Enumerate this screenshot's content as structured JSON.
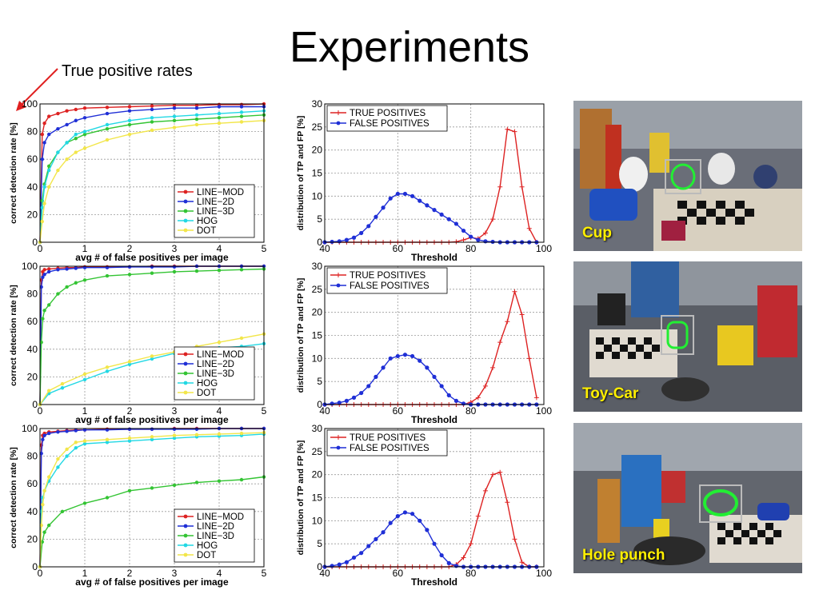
{
  "slide": {
    "title": "Experiments",
    "annotation": "True positive rates"
  },
  "colors": {
    "red": "#dd2222",
    "blue": "#1f2fd6",
    "green": "#33c433",
    "cyan": "#22d8e4",
    "yellow": "#f2e64a",
    "photo_label": "#ffef00",
    "arrow": "#e02020"
  },
  "photos": [
    {
      "label": "Cup"
    },
    {
      "label": "Toy-Car"
    },
    {
      "label": "Hole punch"
    }
  ],
  "chart_data": [
    {
      "type": "line",
      "xlabel": "avg # of false positives per image",
      "ylabel": "correct detection rate [%]",
      "xlim": [
        0,
        5
      ],
      "ylim": [
        0,
        100
      ],
      "xticks": [
        0,
        1,
        2,
        3,
        4,
        5
      ],
      "yticks": [
        0,
        20,
        40,
        60,
        80,
        100
      ],
      "grid": true,
      "legend": "bottom-right",
      "series": [
        {
          "name": "LINE−MOD",
          "color": "#dd2222",
          "x": [
            0,
            0.05,
            0.1,
            0.2,
            0.4,
            0.6,
            0.8,
            1,
            1.5,
            2,
            2.5,
            3,
            3.5,
            4,
            4.5,
            5
          ],
          "y": [
            0,
            78,
            86,
            91,
            93,
            95,
            96,
            97,
            97.5,
            98,
            98.5,
            99,
            99,
            99.5,
            99.5,
            100
          ]
        },
        {
          "name": "LINE−2D",
          "color": "#1f2fd6",
          "x": [
            0,
            0.05,
            0.1,
            0.2,
            0.4,
            0.6,
            0.8,
            1,
            1.5,
            2,
            2.5,
            3,
            3.5,
            4,
            4.5,
            5
          ],
          "y": [
            0,
            60,
            72,
            78,
            82,
            85,
            88,
            90,
            93,
            95,
            96,
            97,
            97,
            98,
            98,
            98
          ]
        },
        {
          "name": "LINE−3D",
          "color": "#33c433",
          "x": [
            0,
            0.05,
            0.1,
            0.2,
            0.4,
            0.6,
            0.8,
            1,
            1.5,
            2,
            2.5,
            3,
            3.5,
            4,
            4.5,
            5
          ],
          "y": [
            0,
            30,
            42,
            55,
            65,
            72,
            75,
            78,
            82,
            85,
            87,
            88,
            89,
            90,
            91,
            92
          ]
        },
        {
          "name": "HOG",
          "color": "#22d8e4",
          "x": [
            0,
            0.05,
            0.1,
            0.2,
            0.4,
            0.6,
            0.8,
            1,
            1.5,
            2,
            2.5,
            3,
            3.5,
            4,
            4.5,
            5
          ],
          "y": [
            0,
            25,
            40,
            52,
            65,
            72,
            78,
            80,
            85,
            88,
            90,
            91,
            92,
            93,
            94,
            95
          ]
        },
        {
          "name": "DOT",
          "color": "#f2e64a",
          "x": [
            0,
            0.05,
            0.1,
            0.2,
            0.4,
            0.6,
            0.8,
            1,
            1.5,
            2,
            2.5,
            3,
            3.5,
            4,
            4.5,
            5
          ],
          "y": [
            0,
            15,
            28,
            40,
            52,
            60,
            65,
            68,
            74,
            78,
            81,
            83,
            85,
            86,
            87,
            88
          ]
        }
      ]
    },
    {
      "type": "line",
      "xlabel": "Threshold",
      "ylabel": "distribution of TP and FP [%]",
      "xlim": [
        40,
        100
      ],
      "ylim": [
        0,
        30
      ],
      "xticks": [
        40,
        60,
        80,
        100
      ],
      "yticks": [
        0,
        5,
        10,
        15,
        20,
        25,
        30
      ],
      "grid": true,
      "legend": "top-left",
      "series": [
        {
          "name": "TRUE POSITIVES",
          "color": "#dd2222",
          "marker": "plus",
          "x": [
            40,
            42,
            44,
            46,
            48,
            50,
            52,
            54,
            56,
            58,
            60,
            62,
            64,
            66,
            68,
            70,
            72,
            74,
            76,
            78,
            80,
            82,
            84,
            86,
            88,
            90,
            92,
            94,
            96,
            98
          ],
          "y": [
            0,
            0,
            0,
            0,
            0,
            0,
            0,
            0,
            0,
            0,
            0,
            0,
            0,
            0,
            0,
            0,
            0,
            0,
            0.1,
            0.5,
            1,
            0.8,
            2,
            5,
            12,
            24.5,
            24,
            12,
            3,
            0
          ]
        },
        {
          "name": "FALSE POSITIVES",
          "color": "#1f2fd6",
          "marker": "dot",
          "x": [
            40,
            42,
            44,
            46,
            48,
            50,
            52,
            54,
            56,
            58,
            60,
            62,
            64,
            66,
            68,
            70,
            72,
            74,
            76,
            78,
            80,
            82,
            84,
            86,
            88,
            90,
            92,
            94,
            96,
            98
          ],
          "y": [
            0,
            0.1,
            0.2,
            0.5,
            1,
            2,
            3.5,
            5.5,
            7.5,
            9.5,
            10.5,
            10.5,
            10,
            9,
            8,
            7,
            6,
            5,
            4,
            2.5,
            1.2,
            0.5,
            0.2,
            0.1,
            0,
            0,
            0,
            0,
            0,
            0
          ]
        }
      ]
    },
    {
      "type": "line",
      "xlabel": "avg # of false positives per image",
      "ylabel": "correct detection rate [%]",
      "xlim": [
        0,
        5
      ],
      "ylim": [
        0,
        100
      ],
      "xticks": [
        0,
        1,
        2,
        3,
        4,
        5
      ],
      "yticks": [
        0,
        20,
        40,
        60,
        80,
        100
      ],
      "grid": true,
      "legend": "bottom-right",
      "series": [
        {
          "name": "LINE−MOD",
          "color": "#dd2222",
          "x": [
            0,
            0.03,
            0.06,
            0.1,
            0.2,
            0.4,
            0.6,
            0.8,
            1,
            1.5,
            2,
            2.5,
            3,
            3.5,
            4,
            4.5,
            5
          ],
          "y": [
            0,
            90,
            96,
            97.5,
            98,
            98.5,
            99,
            99,
            99.5,
            99.5,
            99.5,
            100,
            100,
            100,
            100,
            100,
            100
          ]
        },
        {
          "name": "LINE−2D",
          "color": "#1f2fd6",
          "x": [
            0,
            0.03,
            0.06,
            0.1,
            0.2,
            0.4,
            0.6,
            0.8,
            1,
            1.5,
            2,
            2.5,
            3,
            3.5,
            4,
            4.5,
            5
          ],
          "y": [
            0,
            85,
            92,
            94,
            96,
            97.5,
            98,
            98.5,
            99,
            99,
            99.5,
            99.5,
            99.5,
            100,
            100,
            100,
            100
          ]
        },
        {
          "name": "LINE−3D",
          "color": "#33c433",
          "x": [
            0,
            0.03,
            0.06,
            0.1,
            0.2,
            0.4,
            0.6,
            0.8,
            1,
            1.5,
            2,
            2.5,
            3,
            3.5,
            4,
            4.5,
            5
          ],
          "y": [
            0,
            45,
            62,
            68,
            72,
            80,
            85,
            88,
            90,
            93,
            94,
            95,
            96,
            96.5,
            97,
            97.5,
            98
          ]
        },
        {
          "name": "HOG",
          "color": "#22d8e4",
          "x": [
            0,
            0.2,
            0.5,
            1,
            1.5,
            2,
            2.5,
            3,
            3.5,
            4,
            4.5,
            5
          ],
          "y": [
            0,
            8,
            12,
            18,
            24,
            29,
            33,
            37,
            39,
            41,
            42,
            44
          ]
        },
        {
          "name": "DOT",
          "color": "#f2e64a",
          "x": [
            0,
            0.2,
            0.5,
            1,
            1.5,
            2,
            2.5,
            3,
            3.5,
            4,
            4.5,
            5
          ],
          "y": [
            0,
            10,
            15,
            22,
            27,
            31,
            35,
            38,
            42,
            45,
            48,
            51
          ]
        }
      ]
    },
    {
      "type": "line",
      "xlabel": "Threshold",
      "ylabel": "distribution of TP and FP [%]",
      "xlim": [
        40,
        100
      ],
      "ylim": [
        0,
        30
      ],
      "xticks": [
        40,
        60,
        80,
        100
      ],
      "yticks": [
        0,
        5,
        10,
        15,
        20,
        25,
        30
      ],
      "grid": true,
      "legend": "top-left",
      "series": [
        {
          "name": "TRUE POSITIVES",
          "color": "#dd2222",
          "marker": "plus",
          "x": [
            40,
            42,
            44,
            46,
            48,
            50,
            52,
            54,
            56,
            58,
            60,
            62,
            64,
            66,
            68,
            70,
            72,
            74,
            76,
            78,
            80,
            82,
            84,
            86,
            88,
            90,
            92,
            94,
            96,
            98
          ],
          "y": [
            0,
            0,
            0,
            0,
            0,
            0,
            0,
            0,
            0,
            0,
            0,
            0,
            0,
            0,
            0,
            0,
            0,
            0,
            0,
            0,
            0.5,
            1.5,
            4,
            8,
            13.5,
            18,
            24.5,
            19.5,
            10,
            1.5
          ]
        },
        {
          "name": "FALSE POSITIVES",
          "color": "#1f2fd6",
          "marker": "dot",
          "x": [
            40,
            42,
            44,
            46,
            48,
            50,
            52,
            54,
            56,
            58,
            60,
            62,
            64,
            66,
            68,
            70,
            72,
            74,
            76,
            78,
            80,
            82,
            84,
            86,
            88,
            90,
            92,
            94,
            96,
            98
          ],
          "y": [
            0,
            0.2,
            0.4,
            0.8,
            1.5,
            2.5,
            4,
            6,
            8,
            10,
            10.5,
            10.8,
            10.5,
            9.5,
            8,
            6,
            4,
            2,
            0.8,
            0.2,
            0,
            0,
            0,
            0,
            0,
            0,
            0,
            0,
            0,
            0
          ]
        }
      ]
    },
    {
      "type": "line",
      "xlabel": "avg # of false positives per image",
      "ylabel": "correct detection rate [%]",
      "xlim": [
        0,
        5
      ],
      "ylim": [
        0,
        100
      ],
      "xticks": [
        0,
        1,
        2,
        3,
        4,
        5
      ],
      "yticks": [
        0,
        20,
        40,
        60,
        80,
        100
      ],
      "grid": true,
      "legend": "bottom-right",
      "series": [
        {
          "name": "LINE−MOD",
          "color": "#dd2222",
          "x": [
            0,
            0.03,
            0.06,
            0.1,
            0.2,
            0.4,
            0.6,
            0.8,
            1,
            1.5,
            2,
            2.5,
            3,
            3.5,
            4,
            4.5,
            5
          ],
          "y": [
            0,
            88,
            95,
            96.5,
            97.5,
            98,
            98.5,
            99,
            99,
            99.5,
            99.5,
            99.5,
            100,
            100,
            100,
            100,
            100
          ]
        },
        {
          "name": "LINE−2D",
          "color": "#1f2fd6",
          "x": [
            0,
            0.03,
            0.06,
            0.1,
            0.2,
            0.4,
            0.6,
            0.8,
            1,
            1.5,
            2,
            2.5,
            3,
            3.5,
            4,
            4.5,
            5
          ],
          "y": [
            0,
            82,
            92,
            95,
            96.5,
            97.5,
            98,
            98.5,
            99,
            99,
            99.5,
            99.5,
            99.5,
            99.5,
            100,
            100,
            100
          ]
        },
        {
          "name": "LINE−3D",
          "color": "#33c433",
          "x": [
            0,
            0.05,
            0.1,
            0.2,
            0.5,
            1,
            1.5,
            2,
            2.5,
            3,
            3.5,
            4,
            4.5,
            5
          ],
          "y": [
            0,
            18,
            25,
            30,
            40,
            46,
            50,
            55,
            57,
            59,
            61,
            62,
            63,
            65
          ]
        },
        {
          "name": "HOG",
          "color": "#22d8e4",
          "x": [
            0,
            0.03,
            0.06,
            0.1,
            0.2,
            0.4,
            0.6,
            0.8,
            1,
            1.5,
            2,
            2.5,
            3,
            3.5,
            4,
            4.5,
            5
          ],
          "y": [
            0,
            40,
            50,
            55,
            62,
            72,
            80,
            86,
            89,
            90,
            91,
            92,
            93,
            94,
            94.5,
            95,
            96
          ]
        },
        {
          "name": "DOT",
          "color": "#f2e64a",
          "x": [
            0,
            0.03,
            0.06,
            0.1,
            0.2,
            0.4,
            0.6,
            0.8,
            1,
            1.5,
            2,
            2.5,
            3,
            3.5,
            4,
            4.5,
            5
          ],
          "y": [
            0,
            30,
            45,
            55,
            65,
            78,
            85,
            90,
            91,
            92,
            93,
            94,
            95,
            95.5,
            96,
            96.5,
            97
          ]
        }
      ]
    },
    {
      "type": "line",
      "xlabel": "Threshold",
      "ylabel": "distribution of TP and FP [%]",
      "xlim": [
        40,
        100
      ],
      "ylim": [
        0,
        30
      ],
      "xticks": [
        40,
        60,
        80,
        100
      ],
      "yticks": [
        0,
        5,
        10,
        15,
        20,
        25,
        30
      ],
      "grid": true,
      "legend": "top-left",
      "series": [
        {
          "name": "TRUE POSITIVES",
          "color": "#dd2222",
          "marker": "plus",
          "x": [
            40,
            42,
            44,
            46,
            48,
            50,
            52,
            54,
            56,
            58,
            60,
            62,
            64,
            66,
            68,
            70,
            72,
            74,
            76,
            78,
            80,
            82,
            84,
            86,
            88,
            90,
            92,
            94,
            96,
            98
          ],
          "y": [
            0,
            0,
            0,
            0,
            0,
            0,
            0,
            0,
            0,
            0,
            0,
            0,
            0,
            0,
            0,
            0,
            0,
            0,
            0.5,
            2,
            5,
            11,
            16.5,
            20,
            20.5,
            14,
            6,
            1,
            0,
            0
          ]
        },
        {
          "name": "FALSE POSITIVES",
          "color": "#1f2fd6",
          "marker": "dot",
          "x": [
            40,
            42,
            44,
            46,
            48,
            50,
            52,
            54,
            56,
            58,
            60,
            62,
            64,
            66,
            68,
            70,
            72,
            74,
            76,
            78,
            80,
            82,
            84,
            86,
            88,
            90,
            92,
            94,
            96,
            98
          ],
          "y": [
            0,
            0.2,
            0.5,
            1,
            2,
            3,
            4.5,
            6,
            7.5,
            9.5,
            11,
            11.8,
            11.5,
            10,
            8,
            5,
            2.5,
            0.8,
            0.2,
            0,
            0,
            0,
            0,
            0,
            0,
            0,
            0,
            0,
            0,
            0
          ]
        }
      ]
    }
  ]
}
